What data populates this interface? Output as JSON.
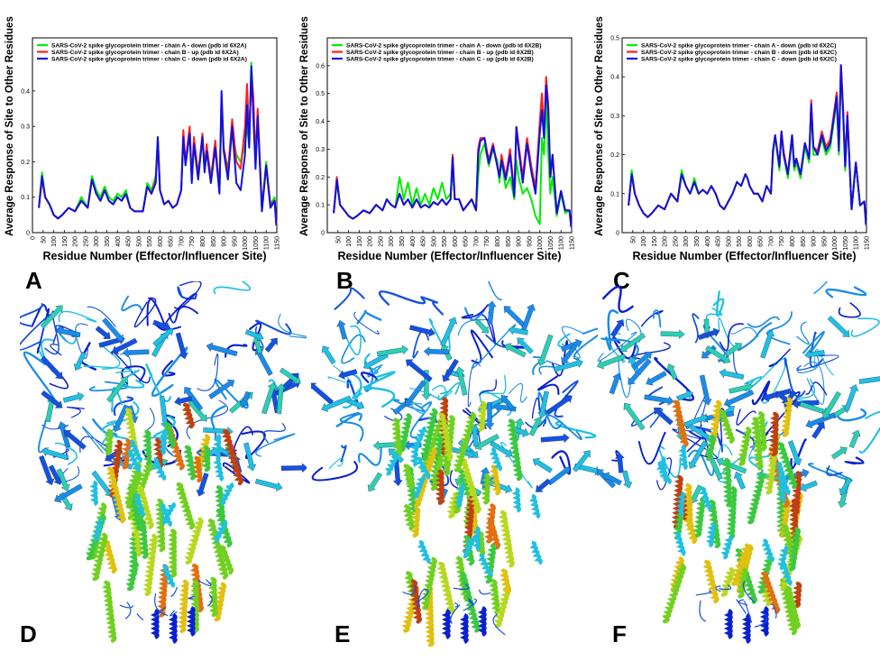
{
  "chart_data": [
    {
      "type": "line",
      "panel": "A",
      "ylabel": "Average Response of Site to Other Residues",
      "xlabel": "Residue Number (Effector/Influencer Site)",
      "xlim": [
        0,
        1150
      ],
      "ylim": [
        0,
        0.55
      ],
      "xticks": [
        0,
        50,
        100,
        150,
        200,
        250,
        300,
        350,
        400,
        450,
        500,
        550,
        600,
        650,
        700,
        750,
        800,
        850,
        900,
        950,
        1000,
        1050,
        1100,
        1150
      ],
      "yticks": [
        0,
        0.1,
        0.2,
        0.3,
        0.4
      ],
      "x": [
        30,
        45,
        60,
        80,
        100,
        120,
        140,
        170,
        200,
        230,
        260,
        280,
        300,
        320,
        340,
        360,
        380,
        400,
        420,
        440,
        460,
        480,
        500,
        520,
        540,
        560,
        580,
        590,
        600,
        620,
        640,
        660,
        680,
        700,
        710,
        720,
        740,
        750,
        760,
        780,
        800,
        810,
        820,
        840,
        860,
        880,
        890,
        900,
        920,
        940,
        960,
        980,
        1000,
        1010,
        1020,
        1030,
        1040,
        1050,
        1060,
        1080,
        1100,
        1120,
        1140,
        1148
      ],
      "series": [
        {
          "name": "SARS-CoV-2 spike glycoprotein trimer - chain A - down (pdb id 6X2A)",
          "color": "#00ee00",
          "values": [
            0.07,
            0.17,
            0.1,
            0.08,
            0.05,
            0.04,
            0.05,
            0.07,
            0.06,
            0.1,
            0.07,
            0.16,
            0.12,
            0.1,
            0.13,
            0.1,
            0.09,
            0.11,
            0.1,
            0.12,
            0.07,
            0.06,
            0.06,
            0.06,
            0.14,
            0.12,
            0.16,
            0.27,
            0.12,
            0.08,
            0.09,
            0.07,
            0.08,
            0.12,
            0.26,
            0.2,
            0.28,
            0.16,
            0.26,
            0.17,
            0.27,
            0.18,
            0.24,
            0.16,
            0.24,
            0.12,
            0.34,
            0.24,
            0.18,
            0.28,
            0.22,
            0.2,
            0.25,
            0.3,
            0.24,
            0.48,
            0.36,
            0.2,
            0.34,
            0.07,
            0.2,
            0.08,
            0.1,
            0.02
          ]
        },
        {
          "name": "SARS-CoV-2 spike glycoprotein trimer - chain B - up  (pdb id 6X2A)",
          "color": "#ff2020",
          "values": [
            0.07,
            0.15,
            0.1,
            0.08,
            0.05,
            0.04,
            0.05,
            0.07,
            0.06,
            0.09,
            0.07,
            0.15,
            0.11,
            0.09,
            0.12,
            0.09,
            0.08,
            0.1,
            0.09,
            0.11,
            0.07,
            0.06,
            0.06,
            0.06,
            0.13,
            0.11,
            0.15,
            0.26,
            0.12,
            0.08,
            0.09,
            0.07,
            0.08,
            0.12,
            0.29,
            0.2,
            0.3,
            0.15,
            0.27,
            0.16,
            0.28,
            0.18,
            0.25,
            0.15,
            0.26,
            0.12,
            0.38,
            0.24,
            0.17,
            0.32,
            0.2,
            0.18,
            0.3,
            0.42,
            0.26,
            0.46,
            0.38,
            0.2,
            0.35,
            0.07,
            0.19,
            0.08,
            0.09,
            0.02
          ]
        },
        {
          "name": "SARS-CoV-2 spike glycoprotein trimer - chain C - down (pdb id 6X2A)",
          "color": "#1010e0",
          "values": [
            0.07,
            0.16,
            0.1,
            0.08,
            0.05,
            0.04,
            0.05,
            0.07,
            0.06,
            0.09,
            0.07,
            0.15,
            0.11,
            0.09,
            0.12,
            0.09,
            0.08,
            0.1,
            0.09,
            0.11,
            0.07,
            0.06,
            0.06,
            0.06,
            0.13,
            0.11,
            0.14,
            0.27,
            0.12,
            0.08,
            0.09,
            0.07,
            0.08,
            0.12,
            0.27,
            0.19,
            0.28,
            0.14,
            0.25,
            0.15,
            0.27,
            0.17,
            0.23,
            0.14,
            0.24,
            0.11,
            0.4,
            0.23,
            0.15,
            0.3,
            0.14,
            0.12,
            0.22,
            0.36,
            0.24,
            0.47,
            0.32,
            0.18,
            0.33,
            0.06,
            0.19,
            0.07,
            0.09,
            0.02
          ]
        }
      ]
    },
    {
      "type": "line",
      "panel": "B",
      "ylabel": "Average Response of Site to Other Residues",
      "xlabel": "Residue Number (Effector/Influencer Site)",
      "xlim": [
        0,
        1150
      ],
      "ylim": [
        0,
        0.7
      ],
      "xticks": [
        50,
        100,
        150,
        200,
        250,
        300,
        350,
        400,
        450,
        500,
        550,
        600,
        650,
        700,
        750,
        800,
        850,
        900,
        950,
        1000,
        1050,
        1100,
        1150
      ],
      "yticks": [
        0,
        0.1,
        0.2,
        0.3,
        0.4,
        0.5,
        0.6
      ],
      "x": [
        30,
        45,
        60,
        80,
        100,
        120,
        140,
        170,
        200,
        230,
        260,
        280,
        300,
        320,
        340,
        360,
        380,
        400,
        420,
        440,
        460,
        480,
        500,
        520,
        540,
        560,
        580,
        590,
        600,
        620,
        640,
        660,
        680,
        700,
        710,
        720,
        740,
        750,
        760,
        780,
        800,
        810,
        820,
        840,
        860,
        880,
        890,
        900,
        920,
        940,
        960,
        980,
        1000,
        1010,
        1020,
        1030,
        1040,
        1050,
        1060,
        1080,
        1100,
        1120,
        1140,
        1148
      ],
      "series": [
        {
          "name": "SARS-CoV-2 spike glycoprotein trimer - chain A - down (pdb id 6X2B)",
          "color": "#00ee00",
          "values": [
            0.07,
            0.18,
            0.1,
            0.08,
            0.06,
            0.05,
            0.06,
            0.08,
            0.07,
            0.1,
            0.08,
            0.12,
            0.1,
            0.09,
            0.2,
            0.12,
            0.18,
            0.1,
            0.16,
            0.1,
            0.14,
            0.1,
            0.16,
            0.12,
            0.18,
            0.12,
            0.14,
            0.22,
            0.12,
            0.12,
            0.08,
            0.1,
            0.12,
            0.08,
            0.2,
            0.28,
            0.32,
            0.28,
            0.24,
            0.3,
            0.26,
            0.18,
            0.26,
            0.16,
            0.2,
            0.12,
            0.26,
            0.2,
            0.14,
            0.16,
            0.12,
            0.06,
            0.03,
            0.34,
            0.28,
            0.5,
            0.28,
            0.14,
            0.2,
            0.06,
            0.14,
            0.07,
            0.08,
            0.02
          ]
        },
        {
          "name": "SARS-CoV-2 spike glycoprotein trimer - chain B - up  (pdb id 6X2B)",
          "color": "#ff2020",
          "values": [
            0.07,
            0.2,
            0.1,
            0.08,
            0.06,
            0.05,
            0.06,
            0.08,
            0.07,
            0.1,
            0.08,
            0.12,
            0.1,
            0.09,
            0.14,
            0.1,
            0.12,
            0.09,
            0.12,
            0.09,
            0.1,
            0.09,
            0.11,
            0.1,
            0.12,
            0.1,
            0.12,
            0.28,
            0.12,
            0.12,
            0.08,
            0.1,
            0.12,
            0.08,
            0.3,
            0.34,
            0.34,
            0.3,
            0.26,
            0.32,
            0.24,
            0.2,
            0.28,
            0.2,
            0.3,
            0.14,
            0.38,
            0.32,
            0.2,
            0.34,
            0.24,
            0.16,
            0.4,
            0.5,
            0.36,
            0.56,
            0.46,
            0.2,
            0.28,
            0.07,
            0.15,
            0.08,
            0.08,
            0.02
          ]
        },
        {
          "name": "SARS-CoV-2 spike glycoprotein trimer - chain C - up  (pdb id 6X2B)",
          "color": "#1010e0",
          "values": [
            0.07,
            0.19,
            0.1,
            0.08,
            0.06,
            0.05,
            0.06,
            0.08,
            0.07,
            0.1,
            0.08,
            0.12,
            0.1,
            0.09,
            0.14,
            0.1,
            0.12,
            0.09,
            0.12,
            0.09,
            0.1,
            0.09,
            0.11,
            0.1,
            0.12,
            0.1,
            0.12,
            0.27,
            0.12,
            0.12,
            0.08,
            0.1,
            0.12,
            0.08,
            0.28,
            0.33,
            0.34,
            0.29,
            0.25,
            0.31,
            0.24,
            0.2,
            0.26,
            0.19,
            0.28,
            0.13,
            0.38,
            0.3,
            0.18,
            0.32,
            0.22,
            0.14,
            0.36,
            0.44,
            0.34,
            0.53,
            0.44,
            0.2,
            0.28,
            0.07,
            0.15,
            0.08,
            0.08,
            0.02
          ]
        }
      ]
    },
    {
      "type": "line",
      "panel": "C",
      "ylabel": "Average Response of Site to Other Residues",
      "xlabel": "Residue Number (Effector/Influencer Site)",
      "xlim": [
        0,
        1150
      ],
      "ylim": [
        0,
        0.5
      ],
      "xticks": [
        50,
        100,
        150,
        200,
        250,
        300,
        350,
        400,
        450,
        500,
        550,
        600,
        650,
        700,
        750,
        800,
        850,
        900,
        950,
        1000,
        1050,
        1100,
        1150
      ],
      "yticks": [
        0,
        0.1,
        0.2,
        0.3,
        0.4,
        0.5
      ],
      "x": [
        30,
        45,
        60,
        80,
        100,
        120,
        140,
        170,
        200,
        230,
        260,
        280,
        300,
        320,
        340,
        360,
        380,
        400,
        420,
        440,
        460,
        480,
        500,
        520,
        540,
        560,
        580,
        590,
        600,
        620,
        640,
        660,
        680,
        700,
        710,
        720,
        740,
        750,
        760,
        780,
        800,
        810,
        820,
        840,
        860,
        880,
        890,
        900,
        920,
        940,
        960,
        980,
        1000,
        1010,
        1020,
        1030,
        1040,
        1050,
        1060,
        1080,
        1100,
        1120,
        1140,
        1148
      ],
      "series": [
        {
          "name": "SARS-CoV-2 spike glycoprotein trimer - chain A - down (pdb id 6X2C)",
          "color": "#00ee00",
          "values": [
            0.07,
            0.16,
            0.1,
            0.07,
            0.05,
            0.04,
            0.05,
            0.07,
            0.06,
            0.1,
            0.08,
            0.16,
            0.12,
            0.1,
            0.14,
            0.1,
            0.11,
            0.1,
            0.12,
            0.1,
            0.07,
            0.06,
            0.08,
            0.1,
            0.13,
            0.12,
            0.15,
            0.14,
            0.12,
            0.1,
            0.1,
            0.08,
            0.12,
            0.1,
            0.2,
            0.25,
            0.16,
            0.26,
            0.2,
            0.14,
            0.24,
            0.16,
            0.18,
            0.14,
            0.22,
            0.18,
            0.32,
            0.2,
            0.2,
            0.24,
            0.2,
            0.22,
            0.3,
            0.34,
            0.2,
            0.42,
            0.3,
            0.16,
            0.3,
            0.06,
            0.18,
            0.07,
            0.08,
            0.02
          ]
        },
        {
          "name": "SARS-CoV-2 spike glycoprotein trimer - chain B - down (pdb id 6X2C)",
          "color": "#ff2020",
          "values": [
            0.07,
            0.15,
            0.1,
            0.07,
            0.05,
            0.04,
            0.05,
            0.07,
            0.06,
            0.1,
            0.08,
            0.15,
            0.12,
            0.1,
            0.13,
            0.1,
            0.11,
            0.1,
            0.12,
            0.1,
            0.07,
            0.06,
            0.08,
            0.1,
            0.13,
            0.12,
            0.15,
            0.14,
            0.12,
            0.1,
            0.1,
            0.08,
            0.12,
            0.1,
            0.21,
            0.25,
            0.17,
            0.26,
            0.21,
            0.15,
            0.25,
            0.17,
            0.19,
            0.15,
            0.23,
            0.19,
            0.34,
            0.22,
            0.21,
            0.26,
            0.22,
            0.24,
            0.32,
            0.36,
            0.22,
            0.43,
            0.32,
            0.17,
            0.31,
            0.06,
            0.18,
            0.07,
            0.08,
            0.02
          ]
        },
        {
          "name": "SARS-CoV-2 spike glycoprotein trimer - chain C - down (pdb id 6X2C)",
          "color": "#1010e0",
          "values": [
            0.07,
            0.15,
            0.1,
            0.07,
            0.05,
            0.04,
            0.05,
            0.07,
            0.06,
            0.1,
            0.08,
            0.15,
            0.12,
            0.1,
            0.13,
            0.1,
            0.11,
            0.1,
            0.12,
            0.1,
            0.07,
            0.06,
            0.08,
            0.1,
            0.13,
            0.12,
            0.15,
            0.14,
            0.12,
            0.1,
            0.1,
            0.08,
            0.12,
            0.1,
            0.21,
            0.25,
            0.17,
            0.26,
            0.2,
            0.15,
            0.25,
            0.17,
            0.19,
            0.15,
            0.23,
            0.19,
            0.33,
            0.22,
            0.2,
            0.25,
            0.21,
            0.23,
            0.31,
            0.35,
            0.21,
            0.43,
            0.31,
            0.17,
            0.3,
            0.06,
            0.18,
            0.07,
            0.08,
            0.02
          ]
        }
      ]
    }
  ],
  "panel_labels": {
    "A": "A",
    "B": "B",
    "C": "C",
    "D": "D",
    "E": "E",
    "F": "F"
  },
  "structures": [
    {
      "panel": "D",
      "description_color_scale": "blue-cyan-green-yellow-red"
    },
    {
      "panel": "E",
      "description_color_scale": "blue-cyan-green-yellow-red"
    },
    {
      "panel": "F",
      "description_color_scale": "blue-cyan-green-yellow-red"
    }
  ]
}
